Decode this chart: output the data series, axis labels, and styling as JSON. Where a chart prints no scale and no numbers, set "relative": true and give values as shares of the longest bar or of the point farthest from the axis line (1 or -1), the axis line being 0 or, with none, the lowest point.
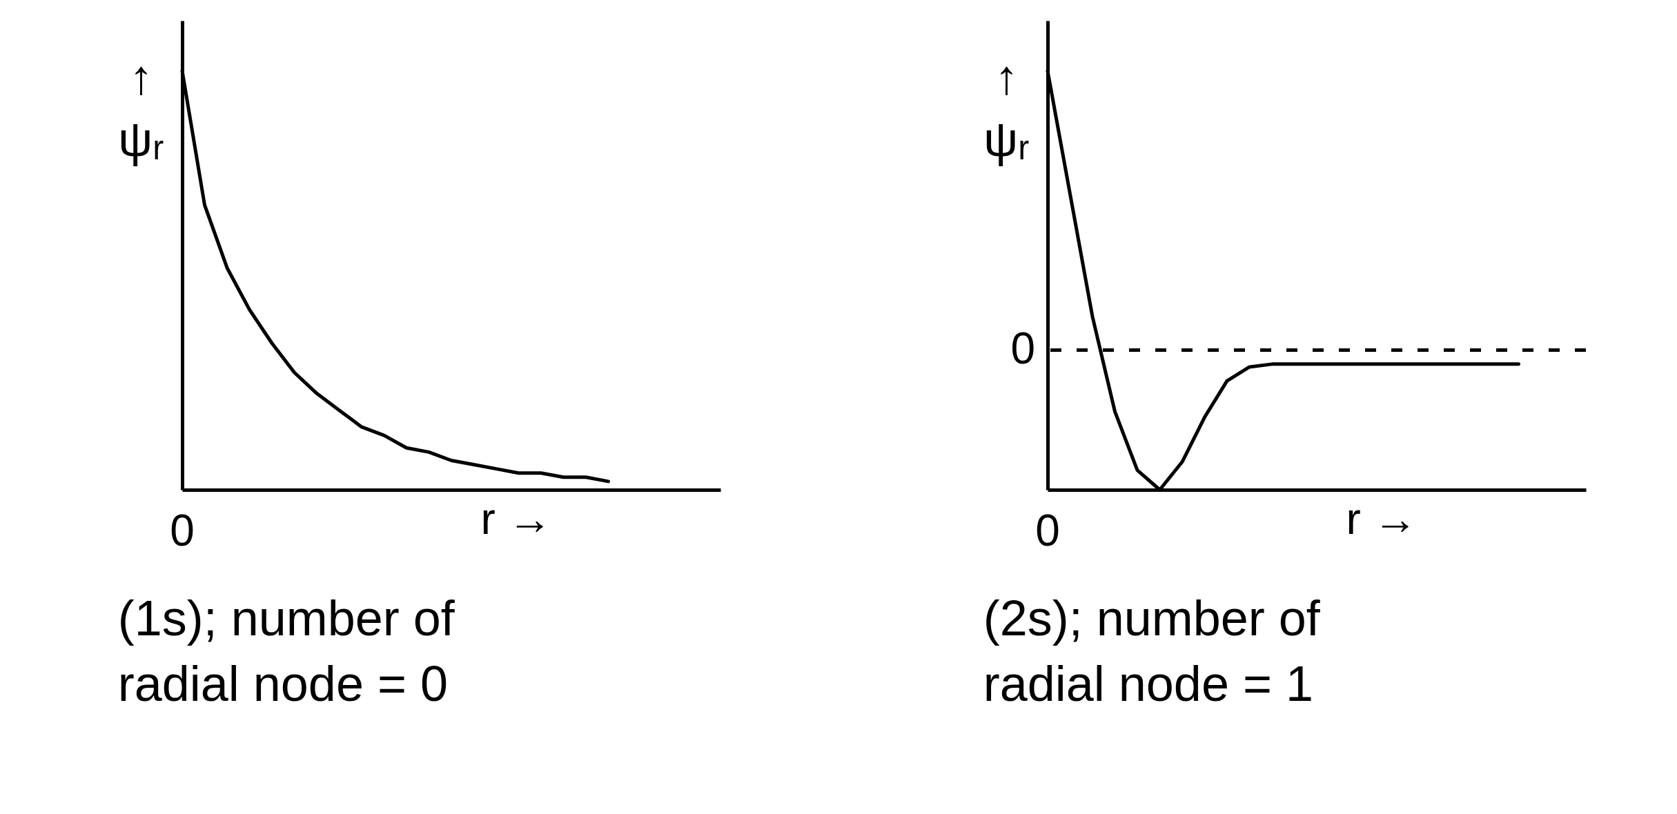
{
  "chart_data": [
    {
      "type": "line",
      "relative": true,
      "title": "(1s); number of\nradial node = 0",
      "xlabel": "r →",
      "ylabel": "↑\nψᵣ",
      "annotations": [
        "0"
      ],
      "categories": [
        null,
        null,
        null,
        null,
        null,
        null,
        null,
        null,
        null,
        null,
        null,
        null,
        null,
        null,
        null,
        null,
        null,
        null,
        null,
        null,
        null,
        null,
        null,
        null,
        null
      ],
      "series": [
        {
          "color": "#000000",
          "values": [
            1.0,
            0.68,
            0.53,
            0.43,
            0.35,
            0.28,
            0.23,
            0.19,
            0.15,
            0.13,
            0.1,
            0.09,
            0.07,
            0.06,
            0.05,
            0.04,
            0.04,
            0.03,
            0.03,
            0.02,
            null,
            null,
            null,
            null,
            null
          ]
        }
      ]
    },
    {
      "type": "line",
      "relative": true,
      "title": "(2s); number of\nradial node = 1",
      "xlabel": "r →",
      "ylabel": "↑\nψᵣ",
      "annotations": [
        "0"
      ],
      "categories": [
        null,
        null,
        null,
        null,
        null,
        null,
        null,
        null,
        null,
        null,
        null,
        null,
        null,
        null,
        null,
        null,
        null,
        null,
        null,
        null,
        null,
        null,
        null,
        null,
        null
      ],
      "series": [
        {
          "color": "#000000",
          "values": [
            1.0,
            0.56,
            0.12,
            -0.22,
            -0.43,
            -0.5,
            -0.4,
            -0.24,
            -0.11,
            -0.06,
            -0.05,
            -0.05,
            -0.05,
            -0.05,
            -0.05,
            -0.05,
            -0.05,
            -0.05,
            -0.05,
            -0.05,
            -0.05,
            -0.05,
            null,
            null,
            null
          ]
        }
      ],
      "ref_lines": [
        {
          "axis": "y",
          "value": 0,
          "label": "0",
          "line_style": "dashed"
        }
      ]
    }
  ]
}
